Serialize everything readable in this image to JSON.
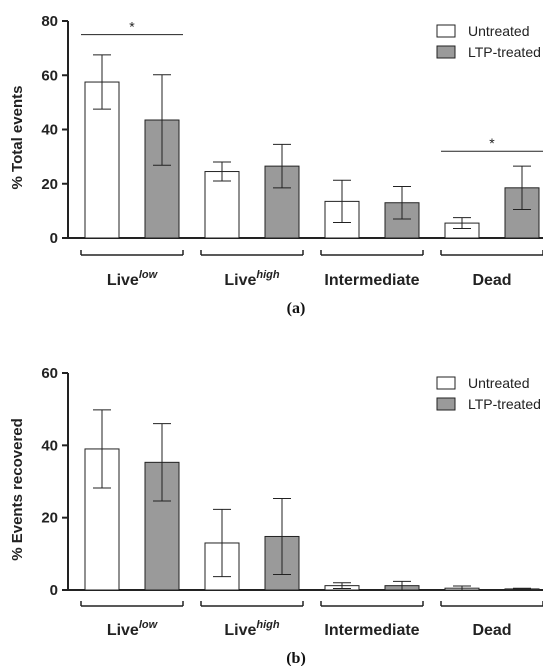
{
  "chart_data": [
    {
      "type": "bar",
      "panel_label": "(a)",
      "ylabel": "% Total events",
      "ylim": [
        0,
        80
      ],
      "yticks": [
        0,
        20,
        40,
        60,
        80
      ],
      "categories": [
        {
          "base": "Live",
          "sup": "low"
        },
        {
          "base": "Live",
          "sup": "high"
        },
        {
          "base": "Intermediate",
          "sup": ""
        },
        {
          "base": "Dead",
          "sup": ""
        }
      ],
      "series": [
        {
          "name": "Untreated",
          "color": "#ffffff",
          "values": [
            57.5,
            24.5,
            13.5,
            5.5
          ],
          "errors": [
            10,
            3.5,
            7.8,
            2
          ]
        },
        {
          "name": "LTP-treated",
          "color": "#9a9a9a",
          "values": [
            43.5,
            26.5,
            13,
            18.5
          ],
          "errors": [
            16.7,
            8,
            6,
            8
          ]
        }
      ],
      "annotations": [
        {
          "text": "*",
          "category_start": 0,
          "category_end": 0,
          "y": 75
        },
        {
          "text": "*",
          "category_start": 3,
          "category_end": 3,
          "y": 32
        }
      ]
    },
    {
      "type": "bar",
      "panel_label": "(b)",
      "ylabel": "% Events recovered",
      "ylim": [
        0,
        60
      ],
      "yticks": [
        0,
        20,
        40,
        60
      ],
      "categories": [
        {
          "base": "Live",
          "sup": "low"
        },
        {
          "base": "Live",
          "sup": "high"
        },
        {
          "base": "Intermediate",
          "sup": ""
        },
        {
          "base": "Dead",
          "sup": ""
        }
      ],
      "series": [
        {
          "name": "Untreated",
          "color": "#ffffff",
          "values": [
            39,
            13,
            1.2,
            0.5
          ],
          "errors": [
            10.8,
            9.3,
            0.8,
            0.6
          ]
        },
        {
          "name": "LTP-treated",
          "color": "#9a9a9a",
          "values": [
            35.3,
            14.8,
            1.2,
            0.3
          ],
          "errors": [
            10.7,
            10.5,
            1.2,
            0.2
          ]
        }
      ],
      "annotations": []
    }
  ]
}
